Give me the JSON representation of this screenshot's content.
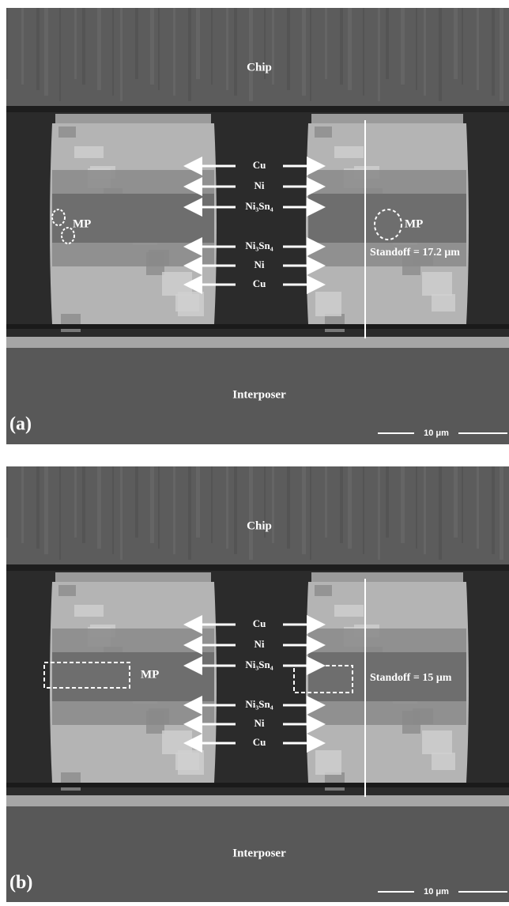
{
  "panels": [
    {
      "label": "(a)",
      "chip": "Chip",
      "interposer": "Interposer",
      "layers_top": [
        "Cu",
        "Ni",
        "Ni₃Sn₄"
      ],
      "layers_bottom": [
        "Ni₃Sn₄",
        "Ni",
        "Cu"
      ],
      "void_label": "MP",
      "standoff": "Standoff = 17.2 μm",
      "scale_bar": "10 μm"
    },
    {
      "label": "(b)",
      "chip": "Chip",
      "interposer": "Interposer",
      "layers_top": [
        "Cu",
        "Ni",
        "Ni₃Sn₄"
      ],
      "layers_bottom": [
        "Ni₃Sn₄",
        "Ni",
        "Cu"
      ],
      "void_label": "MP",
      "standoff": "Standoff = 15 μm",
      "scale_bar": "10 μm"
    }
  ]
}
